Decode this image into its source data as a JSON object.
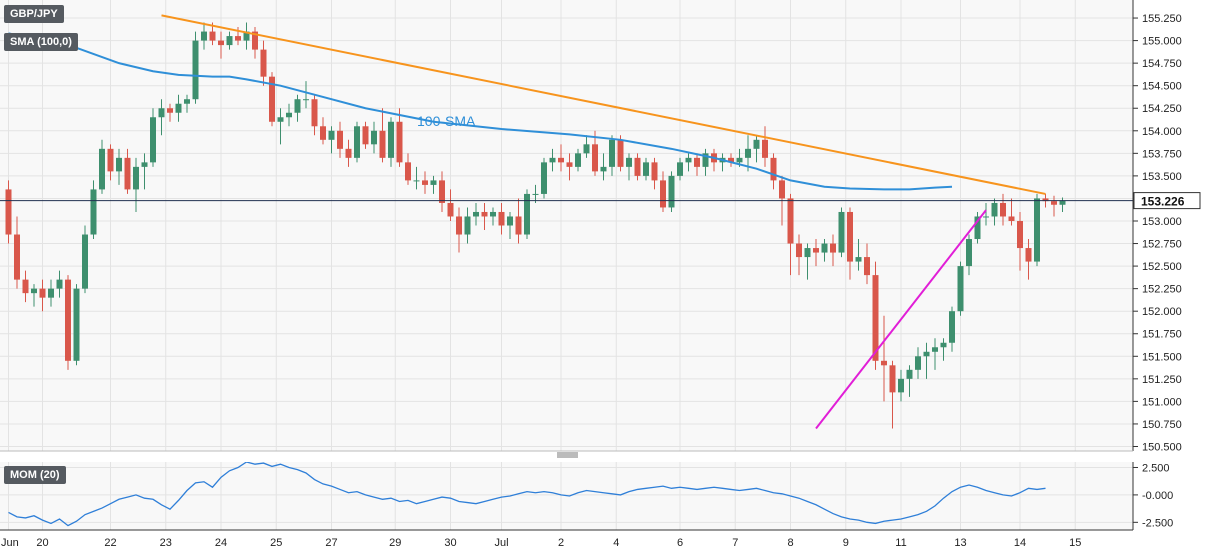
{
  "symbol": "GBP/JPY",
  "colors": {
    "bull": "#3e8f6e",
    "bear": "#d9574b",
    "sma": "#2f8fd8",
    "resistance": "#f7941d",
    "support": "#e11ed7",
    "panel_bg": "#f8f8f8",
    "grid": "#e3e3e3",
    "price_line": "#203050",
    "mom": "#2f7fd8"
  },
  "chart_data": [
    {
      "type": "candlestick",
      "title": "GBP/JPY",
      "y_ticks": [
        "155.250",
        "155.000",
        "154.750",
        "154.500",
        "154.250",
        "154.000",
        "153.750",
        "153.500",
        "153.250",
        "153.000",
        "152.750",
        "152.500",
        "152.250",
        "152.000",
        "151.750",
        "151.500",
        "151.250",
        "151.000",
        "150.750",
        "150.500"
      ],
      "ylim": [
        150.45,
        155.45
      ],
      "x_ticks": [
        {
          "label": "Jun",
          "pos": 0
        },
        {
          "label": "20",
          "pos": 4
        },
        {
          "label": "22",
          "pos": 12
        },
        {
          "label": "23",
          "pos": 18.5
        },
        {
          "label": "24",
          "pos": 25
        },
        {
          "label": "25",
          "pos": 31.5
        },
        {
          "label": "27",
          "pos": 38
        },
        {
          "label": "29",
          "pos": 45.5
        },
        {
          "label": "30",
          "pos": 52
        },
        {
          "label": "Jul",
          "pos": 58
        },
        {
          "label": "2",
          "pos": 65
        },
        {
          "label": "4",
          "pos": 71.5
        },
        {
          "label": "6",
          "pos": 79
        },
        {
          "label": "7",
          "pos": 85.5
        },
        {
          "label": "8",
          "pos": 92
        },
        {
          "label": "9",
          "pos": 98.5
        },
        {
          "label": "11",
          "pos": 105
        },
        {
          "label": "13",
          "pos": 112
        },
        {
          "label": "14",
          "pos": 119
        },
        {
          "label": "15",
          "pos": 125.5
        }
      ],
      "current_price": "153.226",
      "current_value": 153.226,
      "series_label": "100-SMA",
      "legend": [
        "GBP/JPY",
        "SMA (100,0)"
      ],
      "candles": [
        [
          153.35,
          153.45,
          152.75,
          152.85
        ],
        [
          152.85,
          153.05,
          152.25,
          152.35
        ],
        [
          152.35,
          152.45,
          152.1,
          152.2
        ],
        [
          152.2,
          152.3,
          152.05,
          152.25
        ],
        [
          152.25,
          152.35,
          152.0,
          152.15
        ],
        [
          152.15,
          152.35,
          152.05,
          152.25
        ],
        [
          152.25,
          152.45,
          152.15,
          152.35
        ],
        [
          152.35,
          152.4,
          151.35,
          151.45
        ],
        [
          151.45,
          152.3,
          151.4,
          152.25
        ],
        [
          152.25,
          152.95,
          152.2,
          152.85
        ],
        [
          152.85,
          153.45,
          152.8,
          153.35
        ],
        [
          153.35,
          153.9,
          153.3,
          153.8
        ],
        [
          153.8,
          153.85,
          153.45,
          153.55
        ],
        [
          153.55,
          153.8,
          153.4,
          153.7
        ],
        [
          153.7,
          153.8,
          153.3,
          153.35
        ],
        [
          153.35,
          153.7,
          153.1,
          153.6
        ],
        [
          153.6,
          153.75,
          153.35,
          153.65
        ],
        [
          153.65,
          154.25,
          153.6,
          154.15
        ],
        [
          154.15,
          154.35,
          153.95,
          154.25
        ],
        [
          154.25,
          154.3,
          154.1,
          154.2
        ],
        [
          154.2,
          154.4,
          154.1,
          154.3
        ],
        [
          154.3,
          154.4,
          154.2,
          154.35
        ],
        [
          154.35,
          155.1,
          154.3,
          155.0
        ],
        [
          155.0,
          155.2,
          154.9,
          155.1
        ],
        [
          155.1,
          155.2,
          154.95,
          155.0
        ],
        [
          155.0,
          155.1,
          154.8,
          154.95
        ],
        [
          154.95,
          155.1,
          154.9,
          155.05
        ],
        [
          155.05,
          155.15,
          154.95,
          155.0
        ],
        [
          155.0,
          155.2,
          154.9,
          155.1
        ],
        [
          155.1,
          155.15,
          154.8,
          154.9
        ],
        [
          154.9,
          155.0,
          154.5,
          154.6
        ],
        [
          154.6,
          154.65,
          154.05,
          154.1
        ],
        [
          154.1,
          154.25,
          153.85,
          154.15
        ],
        [
          154.15,
          154.3,
          154.05,
          154.2
        ],
        [
          154.2,
          154.4,
          154.1,
          154.35
        ],
        [
          154.35,
          154.55,
          154.25,
          154.35
        ],
        [
          154.35,
          154.4,
          153.95,
          154.05
        ],
        [
          154.05,
          154.15,
          153.85,
          153.9
        ],
        [
          153.9,
          154.05,
          153.75,
          154.0
        ],
        [
          154.0,
          154.1,
          153.7,
          153.8
        ],
        [
          153.8,
          153.9,
          153.6,
          153.7
        ],
        [
          153.7,
          154.1,
          153.65,
          154.05
        ],
        [
          154.05,
          154.1,
          153.8,
          153.85
        ],
        [
          153.85,
          154.1,
          153.75,
          154.0
        ],
        [
          154.0,
          154.25,
          153.65,
          153.7
        ],
        [
          153.7,
          154.15,
          153.6,
          154.1
        ],
        [
          154.1,
          154.25,
          153.6,
          153.65
        ],
        [
          153.65,
          153.75,
          153.4,
          153.45
        ],
        [
          153.45,
          153.6,
          153.35,
          153.45
        ],
        [
          153.45,
          153.55,
          153.3,
          153.4
        ],
        [
          153.4,
          153.5,
          153.3,
          153.45
        ],
        [
          153.45,
          153.55,
          153.1,
          153.2
        ],
        [
          153.2,
          153.35,
          153.0,
          153.05
        ],
        [
          153.05,
          153.15,
          152.65,
          152.85
        ],
        [
          152.85,
          153.15,
          152.75,
          153.05
        ],
        [
          153.05,
          153.2,
          152.95,
          153.1
        ],
        [
          153.1,
          153.2,
          152.9,
          153.05
        ],
        [
          153.05,
          153.15,
          152.95,
          153.1
        ],
        [
          153.1,
          153.2,
          152.85,
          152.95
        ],
        [
          152.95,
          153.1,
          152.8,
          153.05
        ],
        [
          153.05,
          153.25,
          152.75,
          152.85
        ],
        [
          152.85,
          153.35,
          152.8,
          153.3
        ],
        [
          153.3,
          153.4,
          153.2,
          153.3
        ],
        [
          153.3,
          153.7,
          153.25,
          153.65
        ],
        [
          153.65,
          153.8,
          153.55,
          153.7
        ],
        [
          153.7,
          153.85,
          153.55,
          153.65
        ],
        [
          153.65,
          153.75,
          153.45,
          153.6
        ],
        [
          153.6,
          153.8,
          153.55,
          153.75
        ],
        [
          153.75,
          153.95,
          153.7,
          153.85
        ],
        [
          153.85,
          154.0,
          153.5,
          153.55
        ],
        [
          153.55,
          153.75,
          153.45,
          153.6
        ],
        [
          153.6,
          153.95,
          153.5,
          153.9
        ],
        [
          153.9,
          153.95,
          153.55,
          153.6
        ],
        [
          153.6,
          153.75,
          153.45,
          153.7
        ],
        [
          153.7,
          153.75,
          153.45,
          153.5
        ],
        [
          153.5,
          153.7,
          153.45,
          153.65
        ],
        [
          153.65,
          153.7,
          153.35,
          153.45
        ],
        [
          153.45,
          153.55,
          153.1,
          153.15
        ],
        [
          153.15,
          153.55,
          153.1,
          153.5
        ],
        [
          153.5,
          153.7,
          153.45,
          153.65
        ],
        [
          153.65,
          153.75,
          153.55,
          153.7
        ],
        [
          153.7,
          153.75,
          153.5,
          153.6
        ],
        [
          153.6,
          153.8,
          153.5,
          153.75
        ],
        [
          153.75,
          153.8,
          153.55,
          153.65
        ],
        [
          153.65,
          153.75,
          153.55,
          153.7
        ],
        [
          153.7,
          153.75,
          153.6,
          153.65
        ],
        [
          153.65,
          153.8,
          153.6,
          153.7
        ],
        [
          153.7,
          153.95,
          153.55,
          153.8
        ],
        [
          153.8,
          153.95,
          153.65,
          153.9
        ],
        [
          153.9,
          154.05,
          153.6,
          153.7
        ],
        [
          153.7,
          153.75,
          153.35,
          153.45
        ],
        [
          153.45,
          153.5,
          152.95,
          153.25
        ],
        [
          153.25,
          153.3,
          152.4,
          152.75
        ],
        [
          152.75,
          152.85,
          152.4,
          152.6
        ],
        [
          152.6,
          152.75,
          152.35,
          152.7
        ],
        [
          152.7,
          152.8,
          152.5,
          152.65
        ],
        [
          152.65,
          152.8,
          152.55,
          152.75
        ],
        [
          152.75,
          152.85,
          152.5,
          152.65
        ],
        [
          152.65,
          153.15,
          152.6,
          153.1
        ],
        [
          153.1,
          153.15,
          152.35,
          152.55
        ],
        [
          152.55,
          152.8,
          152.45,
          152.6
        ],
        [
          152.6,
          152.75,
          152.3,
          152.4
        ],
        [
          152.4,
          152.55,
          151.35,
          151.45
        ],
        [
          151.45,
          151.95,
          151.0,
          151.4
        ],
        [
          151.4,
          151.45,
          150.7,
          151.1
        ],
        [
          151.1,
          151.35,
          151.0,
          151.25
        ],
        [
          151.25,
          151.4,
          151.05,
          151.35
        ],
        [
          151.35,
          151.6,
          151.25,
          151.5
        ],
        [
          151.5,
          151.65,
          151.25,
          151.55
        ],
        [
          151.55,
          151.7,
          151.35,
          151.6
        ],
        [
          151.6,
          151.7,
          151.45,
          151.65
        ],
        [
          151.65,
          152.05,
          151.55,
          152.0
        ],
        [
          152.0,
          152.55,
          151.95,
          152.5
        ],
        [
          152.5,
          152.85,
          152.4,
          152.8
        ],
        [
          152.8,
          153.1,
          152.75,
          153.05
        ],
        [
          153.05,
          153.2,
          152.95,
          153.05
        ],
        [
          153.05,
          153.25,
          152.95,
          153.2
        ],
        [
          153.2,
          153.3,
          152.95,
          153.05
        ],
        [
          153.05,
          153.25,
          152.95,
          153.0
        ],
        [
          153.0,
          153.1,
          152.45,
          152.7
        ],
        [
          152.7,
          152.8,
          152.35,
          152.55
        ],
        [
          152.55,
          153.3,
          152.5,
          153.25
        ],
        [
          153.25,
          153.3,
          153.15,
          153.22
        ],
        [
          153.22,
          153.28,
          153.05,
          153.18
        ],
        [
          153.18,
          153.26,
          153.1,
          153.226
        ]
      ],
      "sma": [
        [
          0,
          155.08
        ],
        [
          8,
          154.92
        ],
        [
          13,
          154.75
        ],
        [
          17,
          154.66
        ],
        [
          20,
          154.62
        ],
        [
          24,
          154.6
        ],
        [
          26,
          154.6
        ],
        [
          28,
          154.57
        ],
        [
          32,
          154.5
        ],
        [
          36,
          154.4
        ],
        [
          42,
          154.25
        ],
        [
          50,
          154.1
        ],
        [
          58,
          154.02
        ],
        [
          66,
          153.96
        ],
        [
          72,
          153.9
        ],
        [
          78,
          153.8
        ],
        [
          83,
          153.7
        ],
        [
          88,
          153.58
        ],
        [
          92,
          153.45
        ],
        [
          96,
          153.38
        ],
        [
          99,
          153.36
        ],
        [
          103,
          153.35
        ],
        [
          106,
          153.35
        ],
        [
          109,
          153.37
        ],
        [
          111,
          153.38
        ]
      ],
      "resistance_line": [
        [
          18,
          155.28
        ],
        [
          122,
          153.3
        ]
      ],
      "support_line": [
        [
          95,
          150.7
        ],
        [
          115,
          153.12
        ]
      ]
    },
    {
      "type": "line",
      "title": "MOM (20)",
      "y_ticks": [
        "2.500",
        "-0.000",
        "-2.500"
      ],
      "ylim": [
        -3.2,
        3.0
      ],
      "values": [
        -1.6,
        -2.0,
        -2.1,
        -1.9,
        -2.3,
        -2.6,
        -2.2,
        -2.8,
        -2.4,
        -1.8,
        -1.5,
        -1.2,
        -0.8,
        -0.4,
        -0.2,
        0.0,
        -0.3,
        -0.4,
        -0.9,
        -1.3,
        -0.5,
        0.4,
        1.1,
        1.2,
        0.7,
        1.6,
        2.2,
        2.5,
        3.0,
        2.8,
        2.9,
        2.6,
        2.8,
        2.5,
        2.3,
        2.0,
        1.4,
        1.0,
        0.8,
        0.5,
        0.2,
        0.3,
        0.0,
        -0.2,
        -0.4,
        -0.3,
        -0.6,
        -0.5,
        -0.8,
        -0.6,
        -0.4,
        -0.2,
        -0.3,
        -0.6,
        -0.7,
        -0.8,
        -0.6,
        -0.4,
        -0.2,
        -0.1,
        0.1,
        0.3,
        0.2,
        0.3,
        0.2,
        0.0,
        -0.1,
        0.2,
        0.4,
        0.3,
        0.2,
        0.1,
        0.0,
        0.3,
        0.5,
        0.6,
        0.7,
        0.8,
        0.6,
        0.7,
        0.6,
        0.5,
        0.6,
        0.7,
        0.6,
        0.5,
        0.4,
        0.5,
        0.6,
        0.4,
        0.2,
        0.1,
        -0.1,
        -0.3,
        -0.6,
        -0.9,
        -1.3,
        -1.7,
        -2.0,
        -2.2,
        -2.3,
        -2.5,
        -2.6,
        -2.4,
        -2.3,
        -2.2,
        -2.0,
        -1.8,
        -1.5,
        -1.0,
        -0.3,
        0.3,
        0.7,
        0.9,
        0.7,
        0.4,
        0.2,
        0.0,
        -0.1,
        0.2,
        0.6,
        0.5,
        0.6
      ]
    }
  ]
}
